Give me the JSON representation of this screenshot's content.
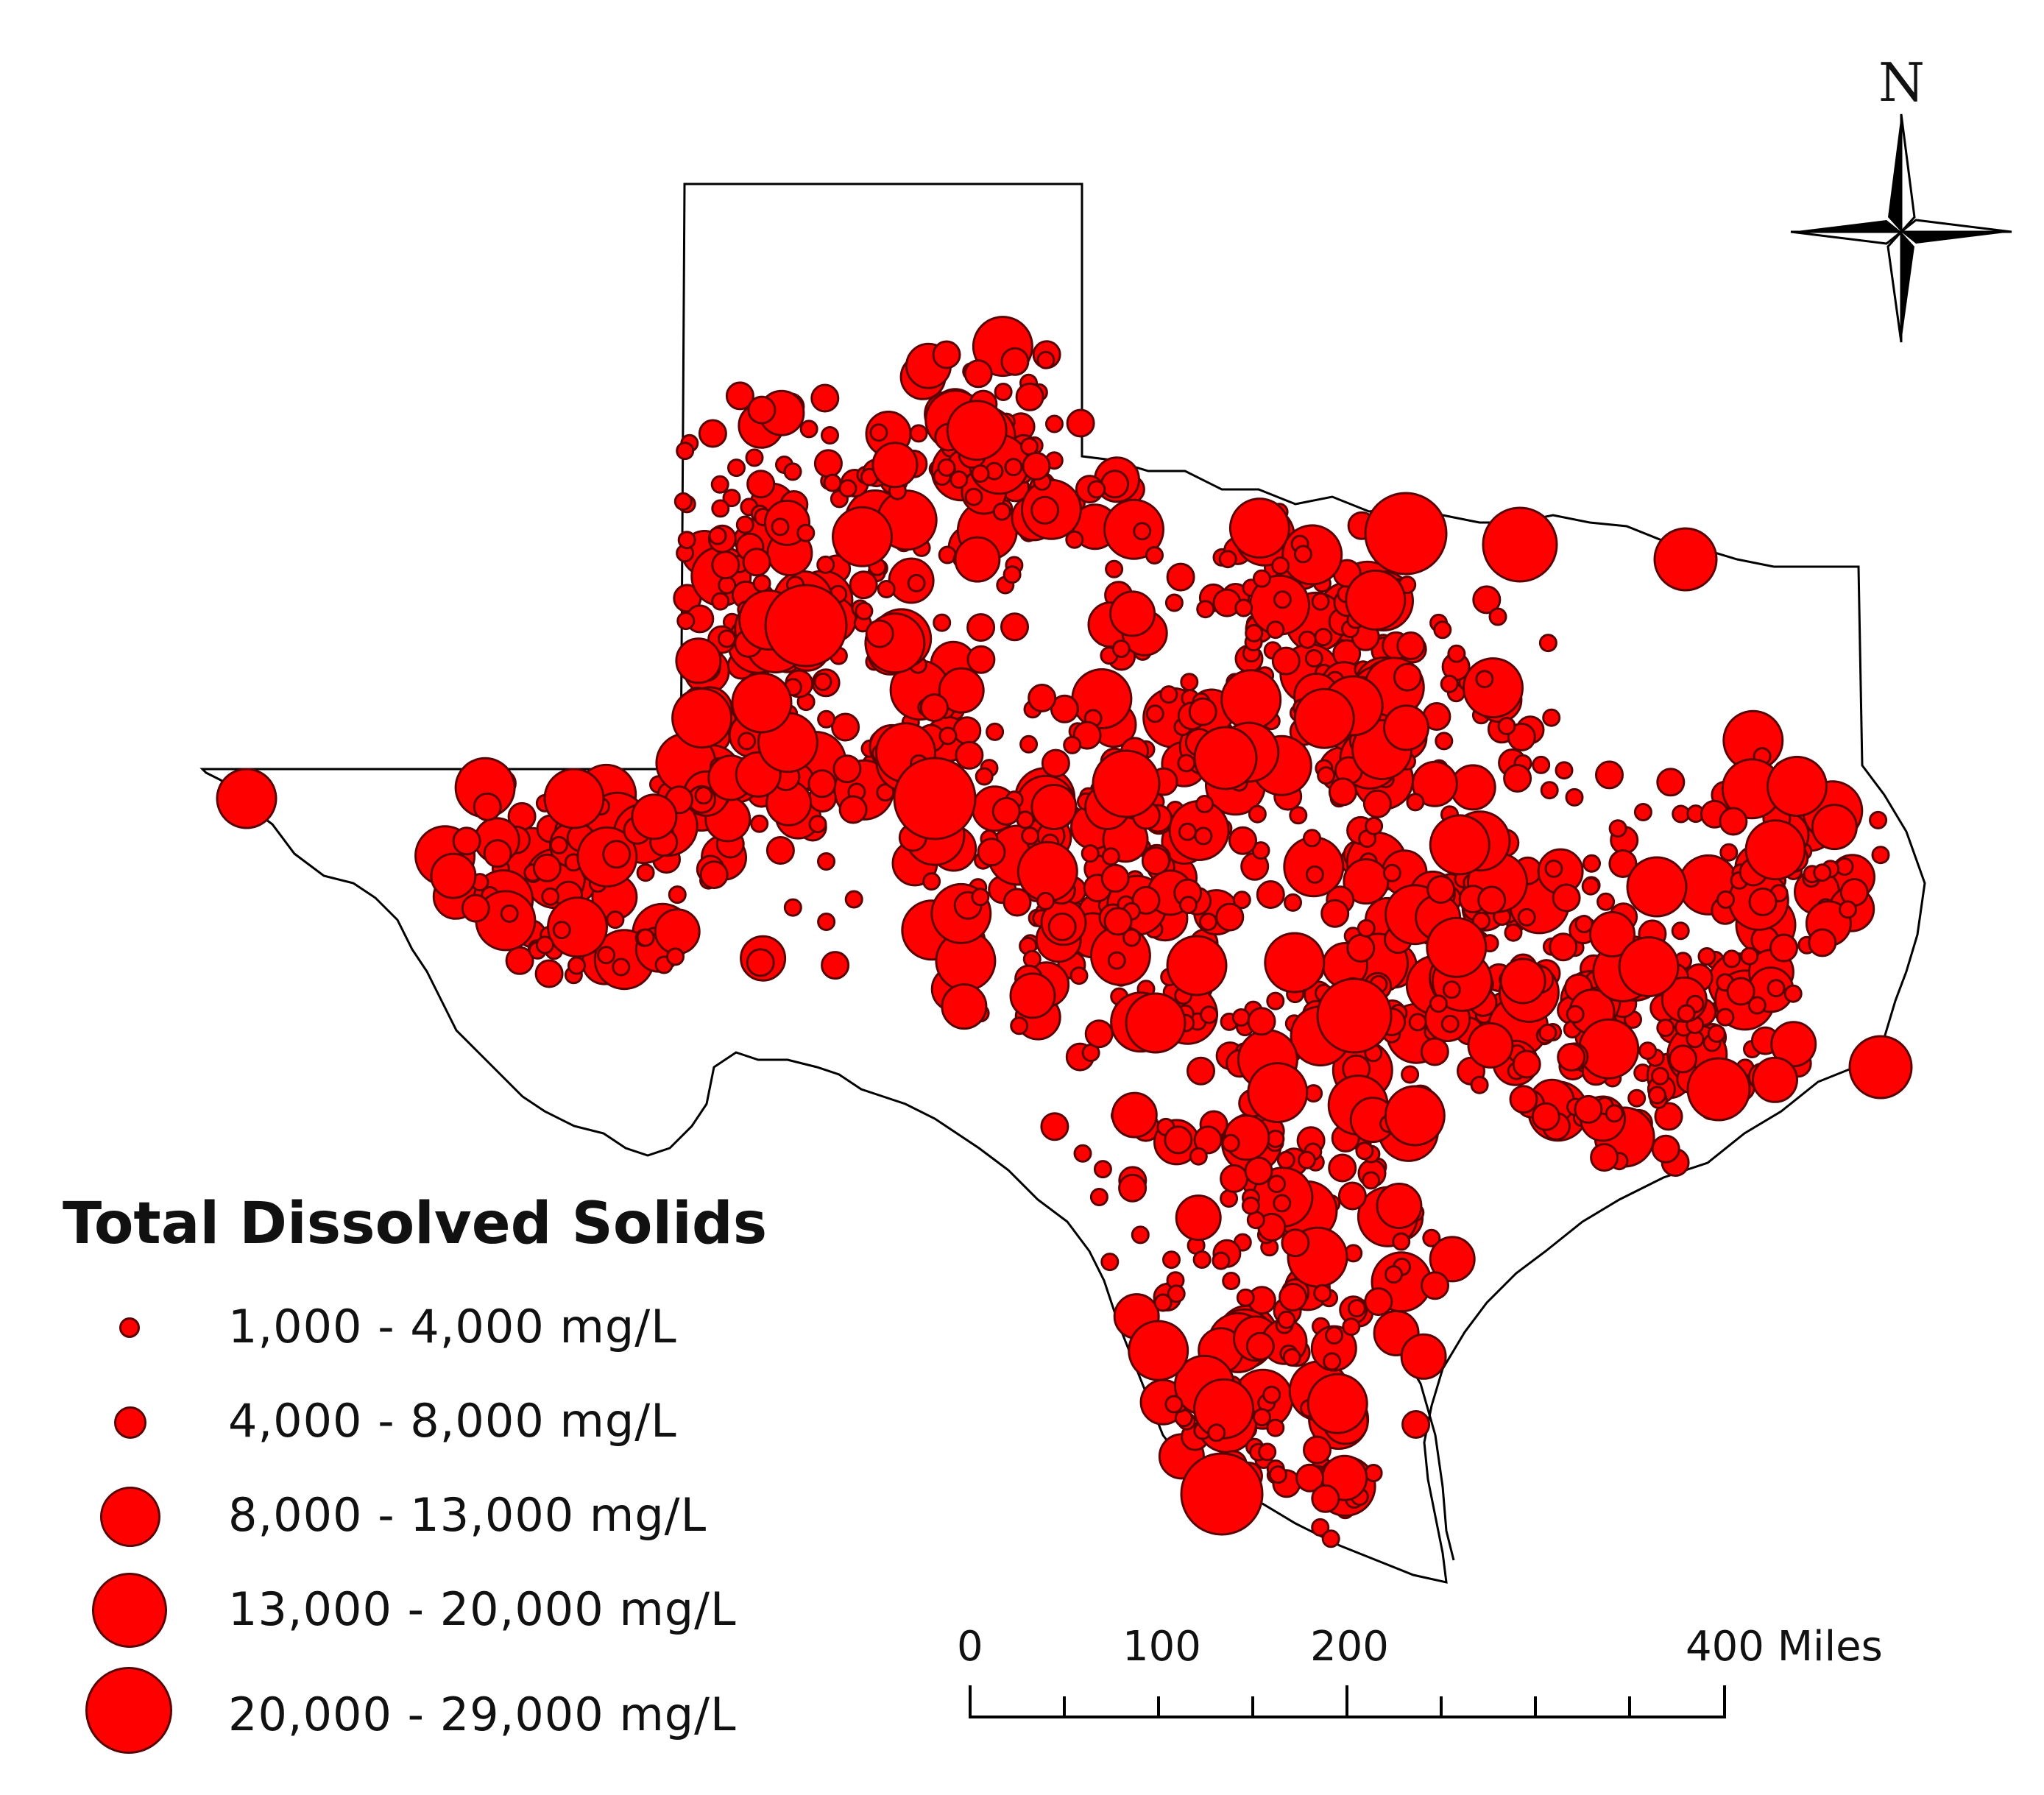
{
  "legend": {
    "title": "Total Dissolved Solids",
    "classes": [
      {
        "label": "1,000 - 4,000 mg/L",
        "symbol_size": "smallest"
      },
      {
        "label": "4,000 - 8,000 mg/L",
        "symbol_size": "small"
      },
      {
        "label": "8,000 - 13,000 mg/L",
        "symbol_size": "medium"
      },
      {
        "label": "13,000 - 20,000 mg/L",
        "symbol_size": "large"
      },
      {
        "label": "20,000 - 29,000 mg/L",
        "symbol_size": "largest"
      }
    ]
  },
  "scale_bar": {
    "labels": [
      "0",
      "100",
      "200",
      "400 Miles"
    ],
    "values": [
      0,
      100,
      200,
      400
    ],
    "unit": "Miles"
  },
  "north_arrow": {
    "label": "N"
  },
  "colors": {
    "point_fill": "#ff0000",
    "point_stroke": "#5a0000",
    "outline": "#000000",
    "background": "#ffffff"
  },
  "map": {
    "region": "Texas",
    "symbology": "graduated circles of well total dissolved solids"
  }
}
